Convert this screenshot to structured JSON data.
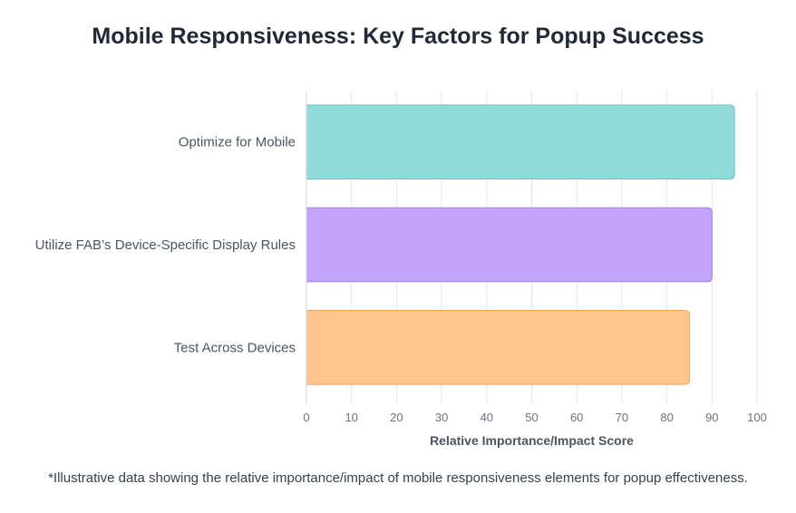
{
  "chart_data": {
    "type": "bar",
    "orientation": "horizontal",
    "title": "Mobile Responsiveness: Key Factors for Popup Success",
    "categories": [
      "Optimize for Mobile",
      "Utilize FAB’s Device-Specific Display Rules",
      "Test Across Devices"
    ],
    "values": [
      95,
      90,
      85
    ],
    "xlabel": "Relative Importance/Impact Score",
    "ylabel": "",
    "xlim": [
      0,
      100
    ],
    "xticks": [
      0,
      10,
      20,
      30,
      40,
      50,
      60,
      70,
      80,
      90,
      100
    ],
    "grid": true,
    "bar_colors": [
      "#93dada",
      "#c4a5fc",
      "#fec58d"
    ],
    "bar_border_colors": [
      "#67c3c3",
      "#a37bf5",
      "#f5a55a"
    ]
  },
  "footnote": "*Illustrative data showing the relative importance/impact of mobile responsiveness elements for popup effectiveness."
}
